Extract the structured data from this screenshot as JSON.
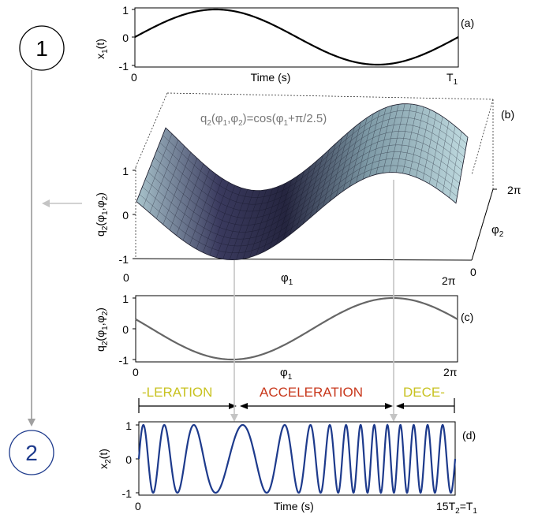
{
  "steps": {
    "one": "1",
    "two": "2"
  },
  "panel_a": {
    "tag": "(a)",
    "ylabel_main": "x",
    "ylabel_sub": "1",
    "ylabel_tail": "(t)",
    "yticks": [
      "1",
      "0",
      "-1"
    ],
    "x0": "0",
    "xlabel": "Time (s)",
    "xend_main": "T",
    "xend_sub": "1"
  },
  "panel_b": {
    "tag": "(b)",
    "equation": {
      "p1": "q",
      "p1s": "2",
      "p2": "(φ",
      "p2s": "1",
      "p3": ",φ",
      "p3s": "2",
      "p4": ")=cos(φ",
      "p4s": "1",
      "p5": "+π/2.5)"
    },
    "ylabel": {
      "a": "q",
      "as": "2",
      "b": "(φ",
      "bs": "1",
      "c": ",φ",
      "cs": "2",
      "d": ")"
    },
    "zticks": [
      "1",
      "0",
      "-1"
    ],
    "x0": "0",
    "xlabel_main": "φ",
    "xlabel_sub": "1",
    "xend": "2π",
    "d_ticks": [
      "2π",
      "0"
    ],
    "dlabel_main": "φ",
    "dlabel_sub": "2"
  },
  "panel_c": {
    "tag": "(c)",
    "ylabel": {
      "a": "q",
      "as": "2",
      "b": "(φ",
      "bs": "1",
      "c": ",φ",
      "cs": "2",
      "d": ")"
    },
    "yticks": [
      "1",
      "0",
      "-1"
    ],
    "x0": "0",
    "xlabel_main": "φ",
    "xlabel_sub": "1",
    "xend": "2π"
  },
  "phases": {
    "left": "-LERATION",
    "middle": "ACCELERATION",
    "right": "DECE-",
    "colors": {
      "yellow": "#c8c220",
      "red": "#c8381c"
    }
  },
  "panel_d": {
    "tag": "(d)",
    "ylabel_main": "x",
    "ylabel_sub": "2",
    "ylabel_tail": "(t)",
    "yticks": [
      "1",
      "0",
      "-1"
    ],
    "x0": "0",
    "xlabel": "Time (s)",
    "xend": {
      "a": "15T",
      "as": "2",
      "b": "=T",
      "bs": "1"
    }
  },
  "colors": {
    "navy": "#1d3a8c",
    "curve_c": "#666666",
    "arrow": "#bbbbbb",
    "flow": "#999999"
  }
}
